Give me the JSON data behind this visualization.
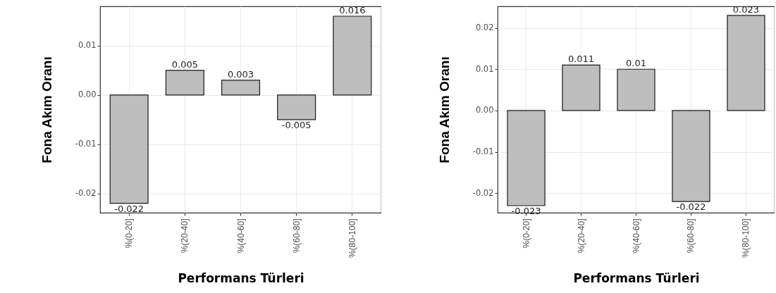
{
  "chart_data": [
    {
      "type": "bar",
      "xlabel": "Performans Türleri",
      "ylabel": "Fona Akım Oranı",
      "categories": [
        "%(0-20]",
        "%(20-40]",
        "%(40-60]",
        "%(60-80]",
        "%(80-100]"
      ],
      "values": [
        -0.022,
        0.005,
        0.003,
        -0.005,
        0.016
      ],
      "color": "#bebebe",
      "ylim": [
        -0.0239,
        0.018
      ],
      "yticks": [
        {
          "value": -0.02,
          "label": "-0.02"
        },
        {
          "value": -0.01,
          "label": "-0.01"
        },
        {
          "value": 0,
          "label": "0.00"
        },
        {
          "value": 0.01,
          "label": "0.01"
        }
      ],
      "grid": true,
      "data_labels": true
    },
    {
      "type": "bar",
      "xlabel": "Performans Türleri",
      "ylabel": "Fona Akım Oranı",
      "categories": [
        "%(0-20]",
        "%(20-40]",
        "%(40-60]",
        "%(60-80]",
        "%(80-100]"
      ],
      "values": [
        -0.023,
        0.011,
        0.01,
        -0.022,
        0.023
      ],
      "color": "#bebebe",
      "ylim": [
        -0.0247,
        0.0252
      ],
      "yticks": [
        {
          "value": -0.02,
          "label": "-0.02"
        },
        {
          "value": -0.01,
          "label": "-0.01"
        },
        {
          "value": 0,
          "label": "0.00"
        },
        {
          "value": 0.01,
          "label": "0.01"
        },
        {
          "value": 0.02,
          "label": "0.02"
        }
      ],
      "grid": true,
      "data_labels": true
    }
  ]
}
